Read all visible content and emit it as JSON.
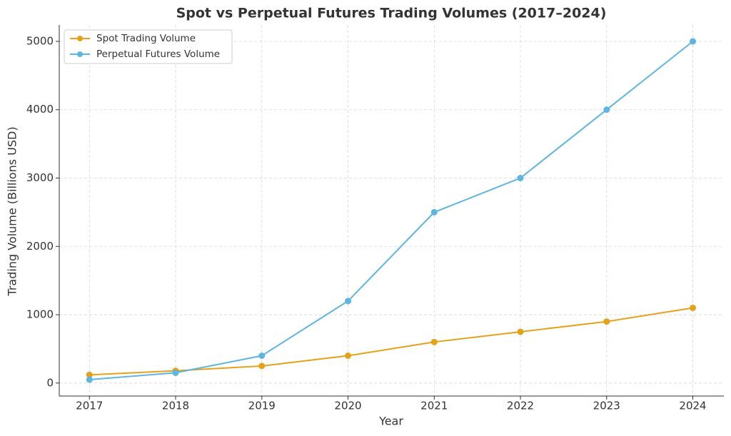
{
  "chart_data": {
    "type": "line",
    "title": "Spot vs Perpetual Futures Trading Volumes (2017–2024)",
    "x_label": "Year",
    "y_label": "Trading Volume (Billions USD)",
    "x": [
      2017,
      2018,
      2019,
      2020,
      2021,
      2022,
      2023,
      2024
    ],
    "series": [
      {
        "name": "Spot Trading Volume",
        "color": "#e3a21a",
        "values": [
          120,
          180,
          250,
          400,
          600,
          750,
          900,
          1100
        ]
      },
      {
        "name": "Perpetual Futures Volume",
        "color": "#5db5e0",
        "values": [
          50,
          150,
          400,
          1200,
          2500,
          3000,
          4000,
          5000
        ]
      }
    ],
    "xlim": [
      2016.65,
      2024.36
    ],
    "xticks": [
      2017,
      2018,
      2019,
      2020,
      2021,
      2022,
      2023,
      2024
    ],
    "ylim": [
      -190,
      5240
    ],
    "yticks": [
      0,
      1000,
      2000,
      3000,
      4000,
      5000
    ],
    "grid": true,
    "legend": "upper left"
  }
}
